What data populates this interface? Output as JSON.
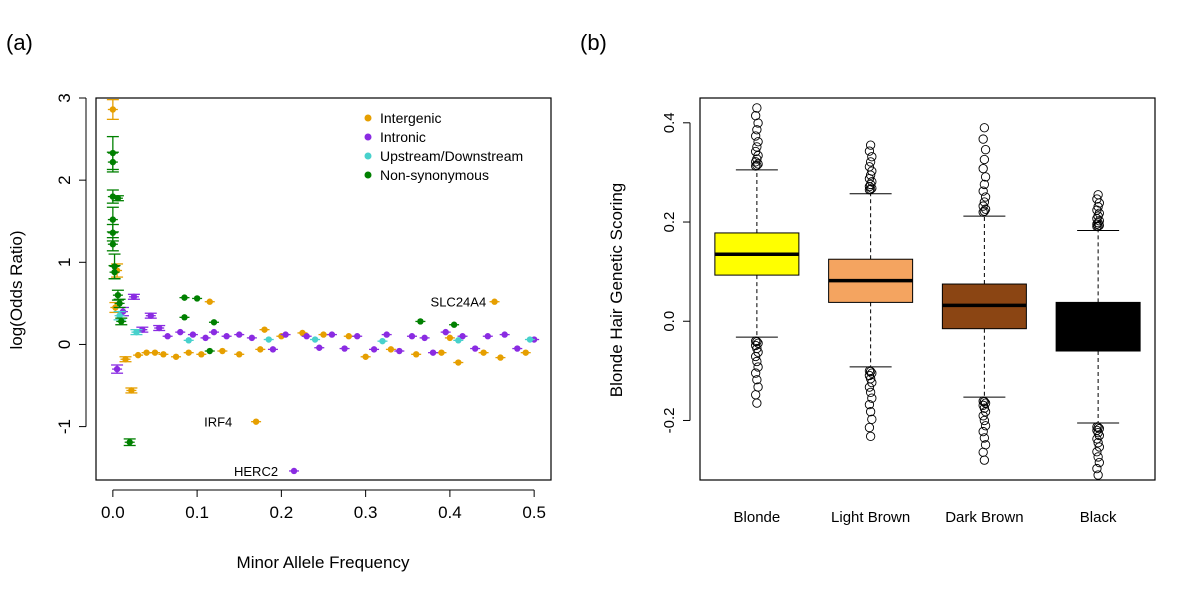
{
  "panels": {
    "a": "(a)",
    "b": "(b)"
  },
  "chart_data": [
    {
      "type": "scatter",
      "title": "",
      "xlabel": "Minor Allele Frequency",
      "ylabel": "log(Odds Ratio)",
      "xlim": [
        -0.02,
        0.52
      ],
      "ylim": [
        -1.65,
        3.0
      ],
      "xticks": [
        0.0,
        0.1,
        0.2,
        0.3,
        0.4,
        0.5
      ],
      "xtick_labels": [
        "0.0",
        "0.1",
        "0.2",
        "0.3",
        "0.4",
        "0.5"
      ],
      "yticks": [
        -1,
        0,
        1,
        2,
        3
      ],
      "ytick_labels": [
        "-1",
        "0",
        "1",
        "2",
        "3"
      ],
      "legend": {
        "position": "top-right",
        "entries": [
          {
            "name": "Intergenic",
            "color": "#E69F00"
          },
          {
            "name": "Intronic",
            "color": "#8A2BE2"
          },
          {
            "name": "Upstream/Downstream",
            "color": "#48D1CC"
          },
          {
            "name": "Non-synonymous",
            "color": "#008000"
          }
        ]
      },
      "series": [
        {
          "name": "Intergenic",
          "color": "#E69F00",
          "points": [
            {
              "x": 0.0,
              "y": 2.86,
              "e": 0.12
            },
            {
              "x": 0.003,
              "y": 0.45,
              "e": 0.06
            },
            {
              "x": 0.005,
              "y": 0.9,
              "e": 0.08
            },
            {
              "x": 0.015,
              "y": -0.18,
              "e": 0.03
            },
            {
              "x": 0.022,
              "y": -0.56,
              "e": 0.03
            },
            {
              "x": 0.03,
              "y": -0.13,
              "e": 0.02
            },
            {
              "x": 0.04,
              "y": -0.1,
              "e": 0.02
            },
            {
              "x": 0.05,
              "y": -0.1,
              "e": 0.02
            },
            {
              "x": 0.06,
              "y": -0.12,
              "e": 0.02
            },
            {
              "x": 0.075,
              "y": -0.15,
              "e": 0.02
            },
            {
              "x": 0.09,
              "y": -0.1,
              "e": 0.02
            },
            {
              "x": 0.105,
              "y": -0.12,
              "e": 0.02
            },
            {
              "x": 0.115,
              "y": 0.52,
              "e": 0.02
            },
            {
              "x": 0.13,
              "y": -0.08,
              "e": 0.02
            },
            {
              "x": 0.15,
              "y": -0.12,
              "e": 0.02
            },
            {
              "x": 0.17,
              "y": -0.94,
              "e": 0.02
            },
            {
              "x": 0.175,
              "y": -0.06,
              "e": 0.02
            },
            {
              "x": 0.18,
              "y": 0.18,
              "e": 0.02
            },
            {
              "x": 0.2,
              "y": 0.1,
              "e": 0.02
            },
            {
              "x": 0.225,
              "y": 0.14,
              "e": 0.02
            },
            {
              "x": 0.25,
              "y": 0.12,
              "e": 0.02
            },
            {
              "x": 0.28,
              "y": 0.1,
              "e": 0.02
            },
            {
              "x": 0.3,
              "y": -0.15,
              "e": 0.02
            },
            {
              "x": 0.33,
              "y": -0.06,
              "e": 0.02
            },
            {
              "x": 0.36,
              "y": -0.12,
              "e": 0.02
            },
            {
              "x": 0.39,
              "y": -0.1,
              "e": 0.02
            },
            {
              "x": 0.4,
              "y": 0.08,
              "e": 0.02
            },
            {
              "x": 0.41,
              "y": -0.22,
              "e": 0.02
            },
            {
              "x": 0.44,
              "y": -0.1,
              "e": 0.02
            },
            {
              "x": 0.453,
              "y": 0.52,
              "e": 0.02
            },
            {
              "x": 0.46,
              "y": -0.16,
              "e": 0.02
            },
            {
              "x": 0.49,
              "y": -0.1,
              "e": 0.02
            }
          ]
        },
        {
          "name": "Intronic",
          "color": "#8A2BE2",
          "points": [
            {
              "x": 0.005,
              "y": -0.3,
              "e": 0.05
            },
            {
              "x": 0.012,
              "y": 0.4,
              "e": 0.05
            },
            {
              "x": 0.025,
              "y": 0.58,
              "e": 0.03
            },
            {
              "x": 0.035,
              "y": 0.18,
              "e": 0.03
            },
            {
              "x": 0.045,
              "y": 0.35,
              "e": 0.03
            },
            {
              "x": 0.055,
              "y": 0.2,
              "e": 0.03
            },
            {
              "x": 0.065,
              "y": 0.1,
              "e": 0.02
            },
            {
              "x": 0.08,
              "y": 0.15,
              "e": 0.02
            },
            {
              "x": 0.095,
              "y": 0.12,
              "e": 0.02
            },
            {
              "x": 0.11,
              "y": 0.08,
              "e": 0.02
            },
            {
              "x": 0.12,
              "y": 0.15,
              "e": 0.02
            },
            {
              "x": 0.135,
              "y": 0.1,
              "e": 0.02
            },
            {
              "x": 0.15,
              "y": 0.12,
              "e": 0.02
            },
            {
              "x": 0.165,
              "y": 0.08,
              "e": 0.02
            },
            {
              "x": 0.19,
              "y": -0.06,
              "e": 0.02
            },
            {
              "x": 0.205,
              "y": 0.12,
              "e": 0.02
            },
            {
              "x": 0.215,
              "y": -1.54,
              "e": 0.02
            },
            {
              "x": 0.23,
              "y": 0.1,
              "e": 0.02
            },
            {
              "x": 0.245,
              "y": -0.04,
              "e": 0.02
            },
            {
              "x": 0.26,
              "y": 0.12,
              "e": 0.02
            },
            {
              "x": 0.275,
              "y": -0.05,
              "e": 0.02
            },
            {
              "x": 0.29,
              "y": 0.1,
              "e": 0.02
            },
            {
              "x": 0.31,
              "y": -0.06,
              "e": 0.02
            },
            {
              "x": 0.325,
              "y": 0.12,
              "e": 0.02
            },
            {
              "x": 0.34,
              "y": -0.08,
              "e": 0.02
            },
            {
              "x": 0.355,
              "y": 0.1,
              "e": 0.02
            },
            {
              "x": 0.37,
              "y": 0.08,
              "e": 0.02
            },
            {
              "x": 0.38,
              "y": -0.1,
              "e": 0.02
            },
            {
              "x": 0.395,
              "y": 0.15,
              "e": 0.02
            },
            {
              "x": 0.415,
              "y": 0.1,
              "e": 0.02
            },
            {
              "x": 0.43,
              "y": -0.05,
              "e": 0.02
            },
            {
              "x": 0.445,
              "y": 0.1,
              "e": 0.02
            },
            {
              "x": 0.465,
              "y": 0.12,
              "e": 0.02
            },
            {
              "x": 0.48,
              "y": -0.05,
              "e": 0.02
            },
            {
              "x": 0.5,
              "y": 0.06,
              "e": 0.02
            }
          ]
        },
        {
          "name": "Upstream/Downstream",
          "color": "#48D1CC",
          "points": [
            {
              "x": 0.008,
              "y": 0.35,
              "e": 0.05
            },
            {
              "x": 0.028,
              "y": 0.15,
              "e": 0.03
            },
            {
              "x": 0.09,
              "y": 0.05,
              "e": 0.02
            },
            {
              "x": 0.185,
              "y": 0.06,
              "e": 0.02
            },
            {
              "x": 0.24,
              "y": 0.06,
              "e": 0.02
            },
            {
              "x": 0.32,
              "y": 0.04,
              "e": 0.02
            },
            {
              "x": 0.41,
              "y": 0.05,
              "e": 0.02
            },
            {
              "x": 0.495,
              "y": 0.06,
              "e": 0.02
            }
          ]
        },
        {
          "name": "Non-synonymous",
          "color": "#008000",
          "points": [
            {
              "x": 0.0,
              "y": 2.33,
              "e": 0.2
            },
            {
              "x": 0.0,
              "y": 2.22,
              "e": 0.12
            },
            {
              "x": 0.0,
              "y": 1.8,
              "e": 0.08
            },
            {
              "x": 0.0,
              "y": 1.52,
              "e": 0.15
            },
            {
              "x": 0.0,
              "y": 1.36,
              "e": 0.1
            },
            {
              "x": 0.0,
              "y": 1.22,
              "e": 0.08
            },
            {
              "x": 0.002,
              "y": 0.95,
              "e": 0.15
            },
            {
              "x": 0.002,
              "y": 0.88,
              "e": 0.08
            },
            {
              "x": 0.006,
              "y": 1.78,
              "e": 0.03
            },
            {
              "x": 0.006,
              "y": 0.6,
              "e": 0.06
            },
            {
              "x": 0.008,
              "y": 0.5,
              "e": 0.05
            },
            {
              "x": 0.01,
              "y": 0.28,
              "e": 0.04
            },
            {
              "x": 0.02,
              "y": -1.19,
              "e": 0.04
            },
            {
              "x": 0.085,
              "y": 0.57,
              "e": 0.02
            },
            {
              "x": 0.085,
              "y": 0.33,
              "e": 0.02
            },
            {
              "x": 0.1,
              "y": 0.56,
              "e": 0.02
            },
            {
              "x": 0.12,
              "y": 0.27,
              "e": 0.02
            },
            {
              "x": 0.115,
              "y": -0.08,
              "e": 0.02
            },
            {
              "x": 0.365,
              "y": 0.28,
              "e": 0.02
            },
            {
              "x": 0.405,
              "y": 0.24,
              "e": 0.02
            }
          ]
        }
      ],
      "annotations": [
        {
          "text": "SLC24A4",
          "x": 0.453,
          "y": 0.52
        },
        {
          "text": "IRF4",
          "x": 0.17,
          "y": -0.94
        },
        {
          "text": "HERC2",
          "x": 0.215,
          "y": -1.54
        }
      ]
    },
    {
      "type": "boxplot",
      "title": "",
      "xlabel": "",
      "ylabel": "Blonde Hair Genetic Scoring",
      "ylim": [
        -0.32,
        0.45
      ],
      "yticks": [
        -0.2,
        0.0,
        0.2,
        0.4
      ],
      "ytick_labels": [
        "-0.2",
        "0.0",
        "0.2",
        "0.4"
      ],
      "categories": [
        "Blonde",
        "Light Brown",
        "Dark Brown",
        "Black"
      ],
      "boxes": [
        {
          "name": "Blonde",
          "color": "#FFFF00",
          "q1": 0.093,
          "median": 0.135,
          "q3": 0.178,
          "whisker_low": -0.032,
          "whisker_high": 0.305,
          "out_low": -0.165,
          "out_high": 0.43
        },
        {
          "name": "Light Brown",
          "color": "#F4A460",
          "q1": 0.038,
          "median": 0.082,
          "q3": 0.125,
          "whisker_low": -0.092,
          "whisker_high": 0.257,
          "out_low": -0.232,
          "out_high": 0.355
        },
        {
          "name": "Dark Brown",
          "color": "#8B4513",
          "q1": -0.015,
          "median": 0.032,
          "q3": 0.075,
          "whisker_low": -0.153,
          "whisker_high": 0.212,
          "out_low": -0.28,
          "out_high": 0.39
        },
        {
          "name": "Black",
          "color": "#000000",
          "q1": -0.06,
          "median": -0.01,
          "q3": 0.038,
          "whisker_low": -0.205,
          "whisker_high": 0.183,
          "out_low": -0.31,
          "out_high": 0.255
        }
      ]
    }
  ]
}
